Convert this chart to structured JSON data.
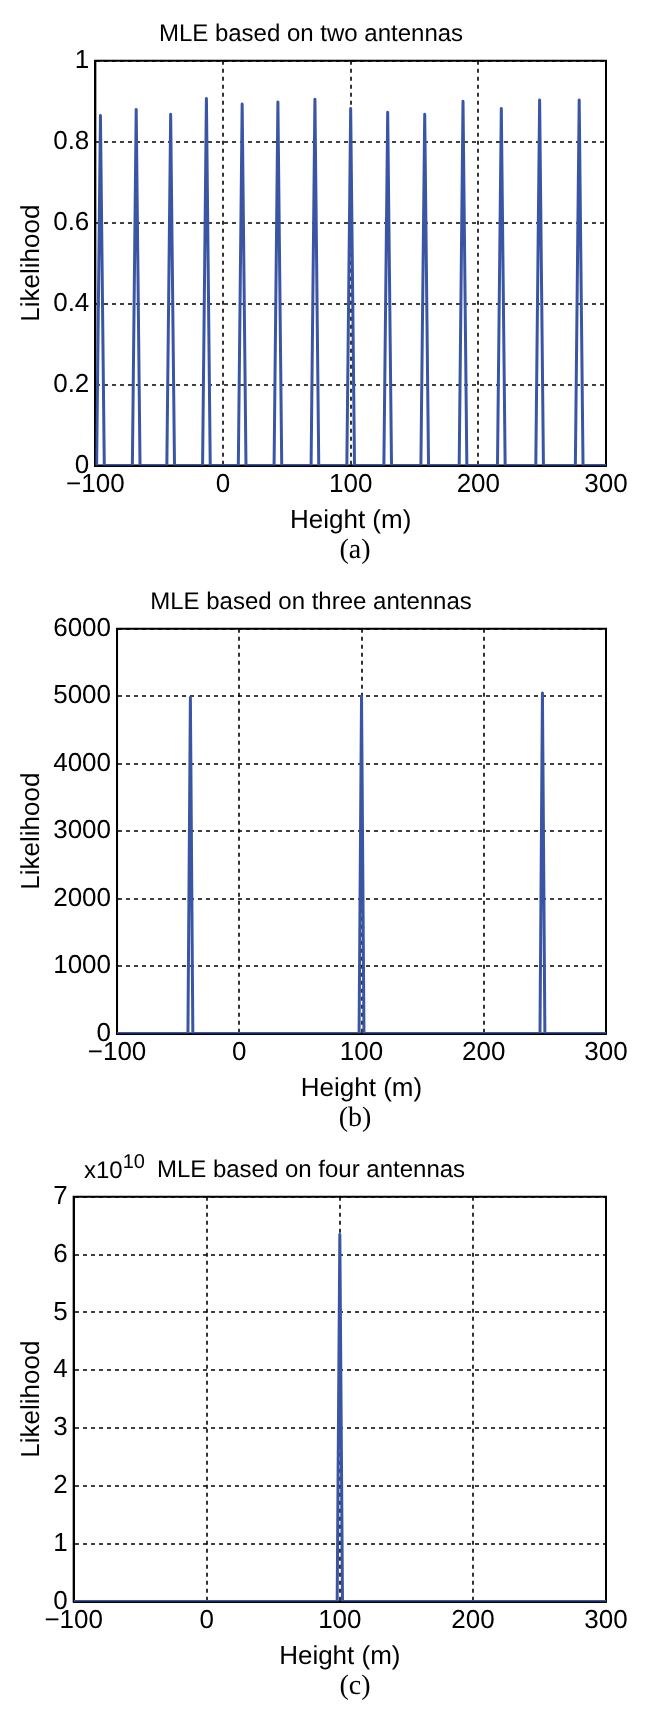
{
  "chart_data": [
    {
      "type": "line",
      "title": "MLE based on two antennas",
      "xlabel": "Height (m)",
      "ylabel": "Likelihood",
      "annotations": [
        "(a)"
      ],
      "color": "#3a55a4",
      "marker": "none",
      "grid": true,
      "xlim": [
        -100,
        300
      ],
      "xticks": [
        -100,
        0,
        100,
        200,
        300
      ],
      "ylim": [
        0,
        1
      ],
      "yticks": [
        0,
        0.2,
        0.4,
        0.6,
        0.8,
        1
      ],
      "x": [
        -100,
        -99,
        -96,
        -93,
        -71,
        -68,
        -65,
        -44,
        -41,
        -38,
        -16,
        -13,
        -10,
        12,
        15,
        18,
        40,
        43,
        46,
        69,
        72,
        75,
        97,
        100,
        103,
        126,
        129,
        132,
        155,
        158,
        161,
        185,
        188,
        191,
        215,
        218,
        221,
        245,
        248,
        251,
        276,
        279,
        282,
        300
      ],
      "values": [
        0,
        0,
        0.865,
        0,
        0,
        0.88,
        0,
        0,
        0.868,
        0,
        0,
        0.907,
        0,
        0,
        0.893,
        0,
        0,
        0.898,
        0,
        0,
        0.905,
        0,
        0,
        0.882,
        0,
        0,
        0.873,
        0,
        0,
        0.868,
        0,
        0,
        0.9,
        0,
        0,
        0.882,
        0,
        0,
        0.903,
        0,
        0,
        0.903,
        0,
        0
      ]
    },
    {
      "type": "line",
      "title": "MLE based on three antennas",
      "xlabel": "Height (m)",
      "ylabel": "Likelihood",
      "annotations": [
        "(b)"
      ],
      "color": "#3a55a4",
      "marker": "none",
      "grid": true,
      "xlim": [
        -100,
        300
      ],
      "xticks": [
        -100,
        0,
        100,
        200,
        300
      ],
      "ylim": [
        0,
        6000
      ],
      "yticks": [
        0,
        1000,
        2000,
        3000,
        4000,
        5000,
        6000
      ],
      "x": [
        -100,
        -42,
        -40,
        -38,
        98,
        100,
        102,
        246,
        248,
        250,
        300
      ],
      "values": [
        0,
        0,
        4980,
        0,
        0,
        5000,
        0,
        0,
        5050,
        0,
        0
      ]
    },
    {
      "type": "line",
      "title": "MLE based on four antennas",
      "xlabel": "Height (m)",
      "ylabel": "Likelihood",
      "annotations": [
        "x10$^{10}$",
        "(c)"
      ],
      "color": "#3a55a4",
      "marker": "none",
      "grid": true,
      "xlim": [
        -100,
        300
      ],
      "xticks": [
        -100,
        0,
        100,
        200,
        300
      ],
      "ylim": [
        0,
        7
      ],
      "yticks": [
        0,
        1,
        2,
        3,
        4,
        5,
        6,
        7
      ],
      "x": [
        -100,
        98,
        100,
        102,
        300
      ],
      "values": [
        0,
        0,
        6.35,
        0,
        0
      ]
    }
  ]
}
